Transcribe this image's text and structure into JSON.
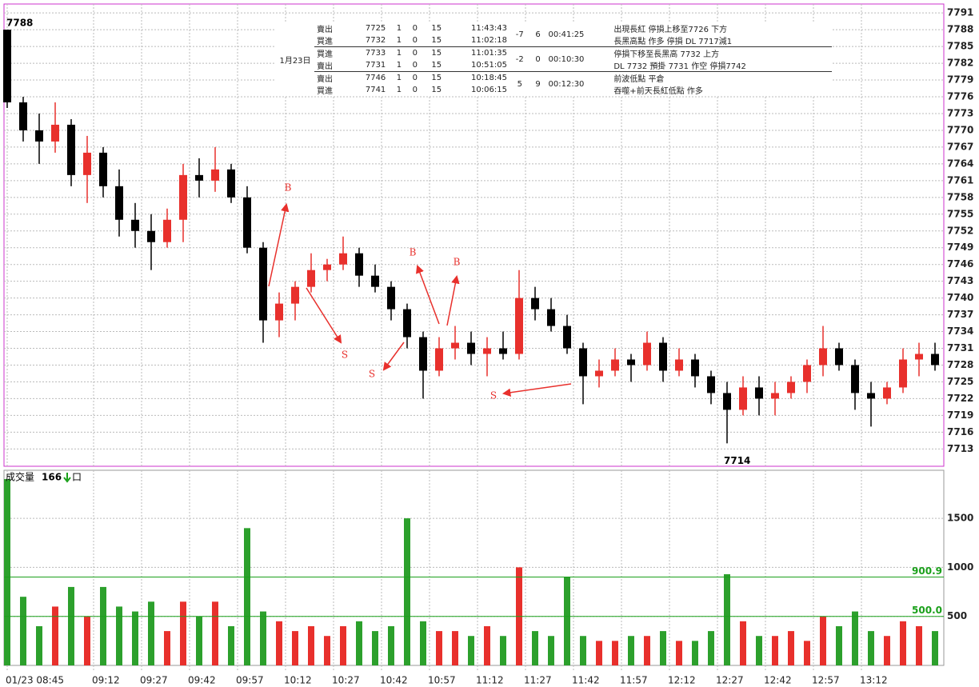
{
  "chart_data": [
    {
      "type": "candlestick",
      "x": [
        0,
        5,
        10,
        15,
        20,
        25,
        30,
        35,
        40,
        45,
        50,
        55,
        60,
        65,
        70,
        75,
        80,
        85,
        90,
        95,
        100,
        105,
        110,
        115,
        120,
        125,
        130,
        135,
        140,
        145,
        150,
        155,
        160,
        165,
        170,
        175,
        180,
        185,
        190,
        195,
        200,
        205,
        210,
        215,
        220,
        225,
        230,
        235,
        240,
        245,
        250,
        255,
        260,
        265,
        270,
        275,
        280,
        285,
        290
      ],
      "open": [
        7788,
        7775,
        7770,
        7768,
        7771,
        7762,
        7766,
        7760,
        7754,
        7752,
        7750,
        7754,
        7762,
        7761,
        7763,
        7758,
        7749,
        7736,
        7739,
        7742,
        7745,
        7746,
        7748,
        7744,
        7742,
        7738,
        7733,
        7727,
        7731,
        7732,
        7730,
        7731,
        7730,
        7740,
        7738,
        7735,
        7731,
        7726,
        7727,
        7729,
        7728,
        7732,
        7727,
        7729,
        7726,
        7723,
        7720,
        7724,
        7722,
        7723,
        7725,
        7728,
        7731,
        7728,
        7723,
        7722,
        7724,
        7729,
        7730
      ],
      "high": [
        7788,
        7776,
        7773,
        7775,
        7772,
        7769,
        7767,
        7763,
        7757,
        7755,
        7756,
        7764,
        7765,
        7767,
        7764,
        7760,
        7750,
        7741,
        7743,
        7748,
        7747,
        7751,
        7749,
        7746,
        7743,
        7739,
        7734,
        7733,
        7735,
        7734,
        7733,
        7734,
        7745,
        7742,
        7740,
        7737,
        7732,
        7729,
        7731,
        7730,
        7734,
        7733,
        7731,
        7730,
        7727,
        7725,
        7726,
        7726,
        7725,
        7726,
        7729,
        7735,
        7732,
        7729,
        7725,
        7725,
        7731,
        7732,
        7732
      ],
      "low": [
        7774,
        7768,
        7764,
        7766,
        7760,
        7757,
        7758,
        7751,
        7749,
        7745,
        7749,
        7750,
        7758,
        7759,
        7757,
        7748,
        7732,
        7733,
        7736,
        7741,
        7743,
        7745,
        7742,
        7741,
        7736,
        7731,
        7722,
        7726,
        7729,
        7728,
        7726,
        7729,
        7729,
        7736,
        7734,
        7730,
        7721,
        7724,
        7726,
        7725,
        7727,
        7725,
        7726,
        7724,
        7721,
        7714,
        7719,
        7719,
        7719,
        7722,
        7723,
        7726,
        7727,
        7720,
        7717,
        7721,
        7723,
        7726,
        7727
      ],
      "close": [
        7775,
        7770,
        7768,
        7771,
        7762,
        7766,
        7760,
        7754,
        7752,
        7750,
        7754,
        7762,
        7761,
        7763,
        7758,
        7749,
        7736,
        7739,
        7742,
        7745,
        7746,
        7748,
        7744,
        7742,
        7738,
        7733,
        7727,
        7731,
        7732,
        7730,
        7731,
        7730,
        7740,
        7738,
        7735,
        7731,
        7726,
        7727,
        7729,
        7728,
        7732,
        7727,
        7729,
        7726,
        7723,
        7720,
        7724,
        7722,
        7723,
        7725,
        7728,
        7731,
        7728,
        7723,
        7722,
        7724,
        7729,
        7730,
        7728
      ],
      "up_color": "#e8302c",
      "down_color": "#000000",
      "xlim": [
        -1,
        293
      ],
      "ylim": [
        7709.9,
        7792.6
      ],
      "yticks": [
        7713,
        7716,
        7719,
        7722,
        7725,
        7728,
        7731,
        7734,
        7737,
        7740,
        7743,
        7746,
        7749,
        7752,
        7755,
        7758,
        7761,
        7764,
        7767,
        7770,
        7773,
        7776,
        7779,
        7782,
        7785,
        7788,
        7791
      ],
      "xticks": [
        {
          "value": 0,
          "label": "01/23 08:45"
        },
        {
          "value": 27,
          "label": "09:12"
        },
        {
          "value": 42,
          "label": "09:27"
        },
        {
          "value": 57,
          "label": "09:42"
        },
        {
          "value": 72,
          "label": "09:57"
        },
        {
          "value": 87,
          "label": "10:12"
        },
        {
          "value": 102,
          "label": "10:27"
        },
        {
          "value": 117,
          "label": "10:42"
        },
        {
          "value": 132,
          "label": "10:57"
        },
        {
          "value": 147,
          "label": "11:12"
        },
        {
          "value": 162,
          "label": "11:27"
        },
        {
          "value": 177,
          "label": "11:42"
        },
        {
          "value": 192,
          "label": "11:57"
        },
        {
          "value": 207,
          "label": "12:12"
        },
        {
          "value": 222,
          "label": "12:27"
        },
        {
          "value": 237,
          "label": "12:42"
        },
        {
          "value": 252,
          "label": "12:57"
        },
        {
          "value": 267,
          "label": "13:12"
        }
      ],
      "grid": true,
      "max_label": 7788,
      "min_label": 7714,
      "trade_marks": [
        "B",
        "S",
        "S",
        "B",
        "B",
        "S"
      ]
    },
    {
      "type": "bar",
      "title": "成交量",
      "current": 166,
      "unit": "口",
      "x": [
        0,
        5,
        10,
        15,
        20,
        25,
        30,
        35,
        40,
        45,
        50,
        55,
        60,
        65,
        70,
        75,
        80,
        85,
        90,
        95,
        100,
        105,
        110,
        115,
        120,
        125,
        130,
        135,
        140,
        145,
        150,
        155,
        160,
        165,
        170,
        175,
        180,
        185,
        190,
        195,
        200,
        205,
        210,
        215,
        220,
        225,
        230,
        235,
        240,
        245,
        250,
        255,
        260,
        265,
        270,
        275,
        280,
        285,
        290
      ],
      "values": [
        1900,
        700,
        400,
        600,
        800,
        500,
        800,
        600,
        550,
        650,
        350,
        650,
        500,
        650,
        400,
        1400,
        550,
        450,
        350,
        400,
        300,
        400,
        450,
        350,
        400,
        1500,
        450,
        350,
        350,
        300,
        400,
        300,
        1000,
        350,
        300,
        900,
        300,
        250,
        250,
        300,
        300,
        350,
        250,
        250,
        350,
        930,
        450,
        300,
        300,
        350,
        250,
        500,
        400,
        550,
        350,
        300,
        450,
        400,
        350
      ],
      "up_color": "#e8302c",
      "down_color": "#2ca02c",
      "ylim": [
        0,
        1990
      ],
      "yticks": [
        500,
        1000,
        1500
      ],
      "reference_lines": [
        {
          "value": 900.9,
          "label": "900.9"
        },
        {
          "value": 500,
          "label": "500.0"
        }
      ],
      "ref_color": "#1aa01a"
    }
  ],
  "trade_table": {
    "date": "1月23日",
    "groups": [
      {
        "rows": [
          [
            "賣出",
            7725,
            1,
            0,
            15,
            "11:43:43"
          ],
          [
            "買進",
            7732,
            1,
            0,
            15,
            "11:02:18"
          ]
        ],
        "diff": -7,
        "points": 6,
        "duration": "00:41:25",
        "notes": [
          "出現長紅 停損上移至7726 下方",
          "長黑高點 作多 停損 DL 7717減1"
        ]
      },
      {
        "rows": [
          [
            "買進",
            7733,
            1,
            0,
            15,
            "11:01:35"
          ],
          [
            "賣出",
            7731,
            1,
            0,
            15,
            "10:51:05"
          ]
        ],
        "diff": -2,
        "points": 0,
        "duration": "00:10:30",
        "notes": [
          "停損下移至長黑高 7732 上方",
          "DL 7732 預掛 7731 作空 停損7742"
        ]
      },
      {
        "rows": [
          [
            "賣出",
            7746,
            1,
            0,
            15,
            "10:18:45"
          ],
          [
            "買進",
            7741,
            1,
            0,
            15,
            "10:06:15"
          ]
        ],
        "diff": 5,
        "points": 9,
        "duration": "00:12:30",
        "notes": [
          "前波低點 平倉",
          "吞噬+前天長紅低點 作多"
        ]
      }
    ]
  }
}
